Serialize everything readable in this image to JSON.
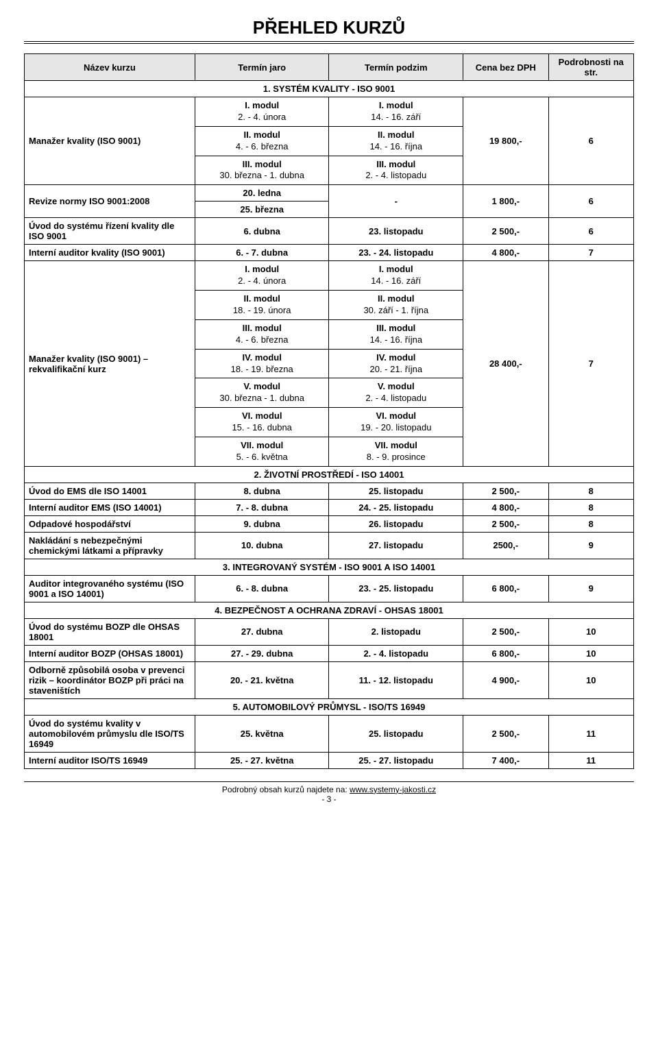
{
  "page_title": "PŘEHLED KURZŮ",
  "header": {
    "c1": "Název kurzu",
    "c2": "Termín jaro",
    "c3": "Termín podzim",
    "c4": "Cena bez DPH",
    "c5": "Podrobnosti na str."
  },
  "sections": {
    "s1": "1. SYSTÉM KVALITY - ISO 9001",
    "s2": "2. ŽIVOTNÍ PROSTŘEDÍ - ISO 14001",
    "s3": "3. INTEGROVANÝ SYSTÉM - ISO 9001 A ISO 14001",
    "s4": "4. BEZPEČNOST A OCHRANA ZDRAVÍ - OHSAS 18001",
    "s5": "5. AUTOMOBILOVÝ PRŮMYSL - ISO/TS 16949"
  },
  "r1": {
    "name": "Manažer kvality (ISO 9001)",
    "jaro": [
      {
        "m": "I. modul",
        "d": "2. - 4. února"
      },
      {
        "m": "II. modul",
        "d": "4. - 6. března"
      },
      {
        "m": "III. modul",
        "d": "30. března - 1. dubna"
      }
    ],
    "podzim": [
      {
        "m": "I. modul",
        "d": "14. - 16. září"
      },
      {
        "m": "II. modul",
        "d": "14. - 16. října"
      },
      {
        "m": "III. modul",
        "d": "2. - 4. listopadu"
      }
    ],
    "price": "19 800,-",
    "page": "6"
  },
  "r2": {
    "name": "Revize normy ISO 9001:2008",
    "jaro1": "20. ledna",
    "jaro2": "25. března",
    "podzim": "-",
    "price": "1 800,-",
    "page": "6"
  },
  "r3": {
    "name": "Úvod do systému řízení kvality dle ISO 9001",
    "jaro": "6. dubna",
    "podzim": "23. listopadu",
    "price": "2 500,-",
    "page": "6"
  },
  "r4": {
    "name": "Interní auditor kvality (ISO 9001)",
    "jaro": "6. - 7. dubna",
    "podzim": "23. - 24. listopadu",
    "price": "4 800,-",
    "page": "7"
  },
  "r5": {
    "name": "Manažer kvality (ISO 9001) – rekvalifikační kurz",
    "jaro": [
      {
        "m": "I. modul",
        "d": "2. - 4. února"
      },
      {
        "m": "II. modul",
        "d": "18. - 19. února"
      },
      {
        "m": "III. modul",
        "d": "4. - 6. března"
      },
      {
        "m": "IV. modul",
        "d": "18. - 19. března"
      },
      {
        "m": "V. modul",
        "d": "30. března - 1. dubna"
      },
      {
        "m": "VI. modul",
        "d": "15. - 16. dubna"
      },
      {
        "m": "VII. modul",
        "d": "5. - 6. května"
      }
    ],
    "podzim": [
      {
        "m": "I. modul",
        "d": "14. - 16. září"
      },
      {
        "m": "II. modul",
        "d": "30. září - 1. října"
      },
      {
        "m": "III. modul",
        "d": "14. - 16. října"
      },
      {
        "m": "IV. modul",
        "d": "20. -  21. října"
      },
      {
        "m": "V. modul",
        "d": "2. - 4. listopadu"
      },
      {
        "m": "VI. modul",
        "d": "19. - 20. listopadu"
      },
      {
        "m": "VII. modul",
        "d": "8. - 9. prosince"
      }
    ],
    "price": "28 400,-",
    "page": "7"
  },
  "r6": {
    "name": "Úvod do EMS dle ISO 14001",
    "jaro": "8. dubna",
    "podzim": "25. listopadu",
    "price": "2 500,-",
    "page": "8"
  },
  "r7": {
    "name": "Interní auditor EMS (ISO 14001)",
    "jaro": "7. - 8. dubna",
    "podzim": "24. - 25. listopadu",
    "price": "4 800,-",
    "page": "8"
  },
  "r8": {
    "name": "Odpadové hospodářství",
    "jaro": "9. dubna",
    "podzim": "26. listopadu",
    "price": "2 500,-",
    "page": "8"
  },
  "r9": {
    "name": "Nakládání s nebezpečnými chemickými látkami a přípravky",
    "jaro": "10. dubna",
    "podzim": "27. listopadu",
    "price": "2500,-",
    "page": "9"
  },
  "r10": {
    "name": "Auditor integrovaného systému (ISO 9001 a ISO 14001)",
    "jaro": "6. - 8. dubna",
    "podzim": "23. - 25. listopadu",
    "price": "6 800,-",
    "page": "9"
  },
  "r11": {
    "name": "Úvod do systému BOZP dle OHSAS 18001",
    "jaro": "27. dubna",
    "podzim": "2. listopadu",
    "price": "2 500,-",
    "page": "10"
  },
  "r12": {
    "name": "Interní auditor BOZP (OHSAS 18001)",
    "jaro": "27. - 29. dubna",
    "podzim": "2. - 4. listopadu",
    "price": "6 800,-",
    "page": "10"
  },
  "r13": {
    "name": "Odborně způsobilá osoba v prevenci rizik – koordinátor BOZP při práci na staveništích",
    "jaro": "20. - 21. května",
    "podzim": "11. - 12. listopadu",
    "price": "4 900,-",
    "page": "10"
  },
  "r14": {
    "name": "Úvod do systému kvality v automobilovém průmyslu dle ISO/TS 16949",
    "jaro": "25. května",
    "podzim": "25. listopadu",
    "price": "2 500,-",
    "page": "11"
  },
  "r15": {
    "name": "Interní auditor ISO/TS 16949",
    "jaro": "25. - 27. května",
    "podzim": "25. - 27. listopadu",
    "price": "7 400,-",
    "page": "11"
  },
  "footer": {
    "text": "Podrobný obsah kurzů najdete na: ",
    "link": "www.systemy-jakosti.cz",
    "pagenum": "- 3 -"
  }
}
